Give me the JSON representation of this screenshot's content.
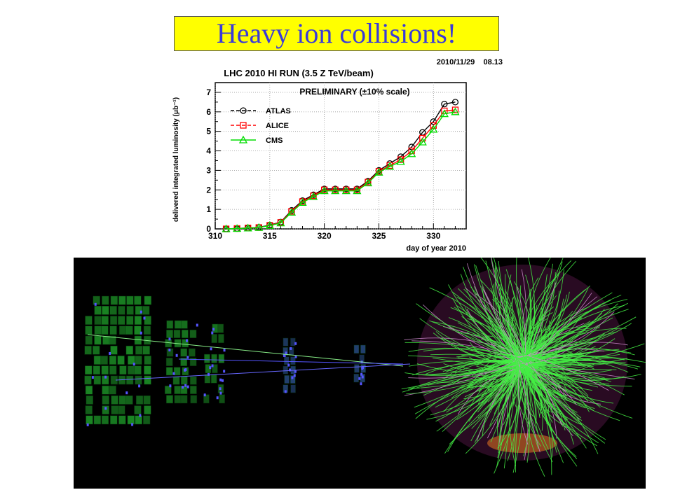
{
  "slide": {
    "title": "Heavy ion collisions!",
    "title_bg": "#ffff00",
    "title_color": "#3b3bd8"
  },
  "chart_data": {
    "type": "line",
    "title": "LHC 2010 HI RUN (3.5 Z TeV/beam)",
    "timestamp": "2010/11/29    08.13",
    "annotation": "PRELIMINARY (±10% scale)",
    "xlabel": "day of year 2010",
    "ylabel": "delivered integrated luminosity (μb⁻¹)",
    "xlim": [
      310,
      333
    ],
    "ylim": [
      0,
      7.5
    ],
    "xticks": [
      310,
      315,
      320,
      325,
      330
    ],
    "yticks": [
      0,
      1,
      2,
      3,
      4,
      5,
      6,
      7
    ],
    "grid": true,
    "legend_position": "top-left",
    "x": [
      311,
      312,
      313,
      314,
      315,
      316,
      317,
      318,
      319,
      320,
      321,
      322,
      323,
      324,
      325,
      326,
      327,
      328,
      329,
      330,
      331,
      332
    ],
    "series": [
      {
        "name": "ATLAS",
        "color": "#000000",
        "marker": "circle",
        "values": [
          0.0,
          0.02,
          0.05,
          0.08,
          0.2,
          0.35,
          0.95,
          1.45,
          1.75,
          2.05,
          2.05,
          2.05,
          2.05,
          2.45,
          3.0,
          3.35,
          3.7,
          4.2,
          4.95,
          5.5,
          6.4,
          6.5
        ]
      },
      {
        "name": "ALICE",
        "color": "#ff0000",
        "marker": "square",
        "values": [
          0.0,
          0.02,
          0.05,
          0.07,
          0.18,
          0.33,
          0.9,
          1.4,
          1.7,
          2.0,
          2.0,
          2.0,
          2.0,
          2.4,
          2.95,
          3.25,
          3.55,
          4.0,
          4.65,
          5.3,
          6.05,
          6.1
        ]
      },
      {
        "name": "CMS",
        "color": "#00dd00",
        "marker": "triangle",
        "values": [
          0.0,
          0.02,
          0.04,
          0.07,
          0.17,
          0.3,
          0.85,
          1.35,
          1.65,
          1.95,
          1.95,
          1.95,
          1.95,
          2.35,
          2.9,
          3.2,
          3.45,
          3.85,
          4.45,
          5.1,
          5.9,
          6.0
        ]
      }
    ]
  },
  "event_display": {
    "background": "#000000",
    "track_color": "#44ee44",
    "alt_track_color": "#cc88cc"
  }
}
